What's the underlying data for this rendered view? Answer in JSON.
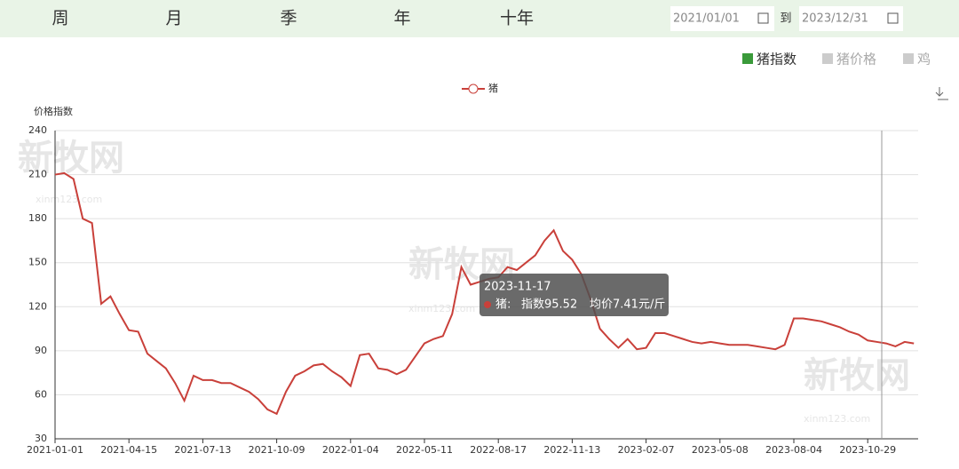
{
  "tabs": [
    "周",
    "月",
    "季",
    "年",
    "十年"
  ],
  "date_range": {
    "start": "2021/01/01",
    "separator": "到",
    "end": "2023/12/31"
  },
  "toggles": [
    {
      "label": "猪指数",
      "color": "#3a9a3a"
    },
    {
      "label": "猪价格",
      "color": "#cccccc"
    },
    {
      "label": "鸡",
      "color": "#cccccc"
    }
  ],
  "watermark": {
    "brand": "新牧网",
    "site": "xinm123.com"
  },
  "chart_data": {
    "type": "line",
    "y_axis_label": "价格指数",
    "categories": [
      "2021-01-01",
      null,
      null,
      null,
      null,
      null,
      null,
      null,
      "2021-04-15",
      null,
      null,
      null,
      null,
      null,
      null,
      null,
      "2021-07-13",
      null,
      null,
      null,
      null,
      null,
      null,
      null,
      "2021-10-09",
      null,
      null,
      null,
      null,
      null,
      null,
      null,
      "2022-01-04",
      null,
      null,
      null,
      null,
      null,
      null,
      null,
      "2022-05-11",
      null,
      null,
      null,
      null,
      null,
      null,
      null,
      "2022-08-17",
      null,
      null,
      null,
      null,
      null,
      null,
      null,
      "2022-11-13",
      null,
      null,
      null,
      null,
      null,
      null,
      null,
      "2023-02-07",
      null,
      null,
      null,
      null,
      null,
      null,
      null,
      "2023-05-08",
      null,
      null,
      null,
      null,
      null,
      null,
      null,
      "2023-08-04",
      null,
      null,
      null,
      null,
      null,
      null,
      null,
      "2023-10-29",
      null,
      null,
      null,
      null,
      null
    ],
    "series": [
      {
        "name": "猪",
        "color": "#c9403a",
        "values": [
          210,
          211,
          207,
          180,
          177,
          122,
          127,
          115,
          104,
          103,
          88,
          83,
          78,
          68,
          56,
          73,
          70,
          70,
          68,
          68,
          65,
          62,
          57,
          50,
          47,
          62,
          73,
          76,
          80,
          81,
          76,
          72,
          66,
          87,
          88,
          78,
          77,
          74,
          77,
          86,
          95,
          98,
          100,
          115,
          147,
          135,
          137,
          139,
          140,
          147,
          145,
          150,
          155,
          165,
          172,
          158,
          152,
          142,
          125,
          105,
          98,
          92,
          98,
          91,
          92,
          102,
          102,
          100,
          98,
          96,
          95,
          96,
          95,
          94,
          94,
          94,
          93,
          92,
          91,
          94,
          112,
          112,
          111,
          110,
          108,
          106,
          103,
          101,
          97,
          96,
          95,
          93,
          96,
          95
        ]
      }
    ],
    "ylim": [
      30,
      240
    ],
    "yticks": [
      30,
      60,
      90,
      120,
      150,
      180,
      210,
      240
    ],
    "grid": true,
    "tooltip": {
      "date": "2023-11-17",
      "series": "猪:",
      "index": "指数95.52",
      "price": "均价7.41元/斤"
    }
  }
}
